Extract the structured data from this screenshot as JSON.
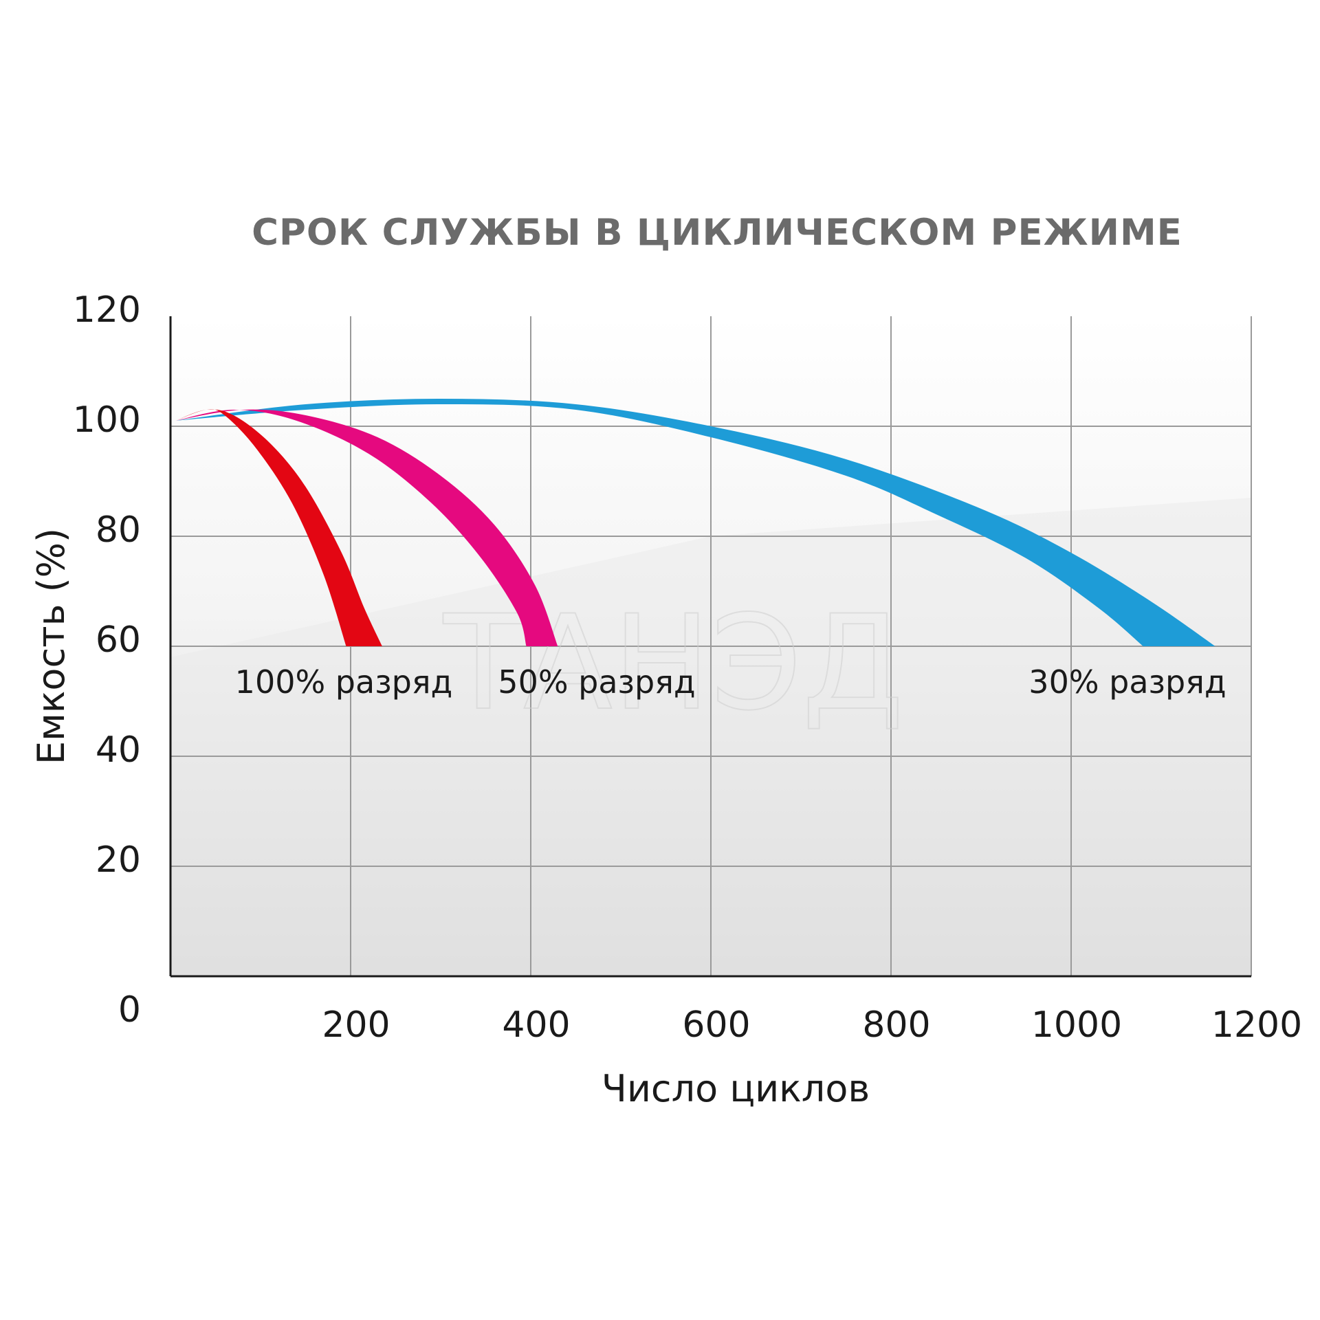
{
  "chart_data": {
    "type": "line",
    "title": "СРОК СЛУЖБЫ В ЦИКЛИЧЕСКОМ РЕЖИМЕ",
    "xlabel": "Число циклов",
    "ylabel": "Емкость (%)",
    "xlim": [
      0,
      1200
    ],
    "ylim": [
      0,
      120
    ],
    "x_ticks": [
      "200",
      "400",
      "600",
      "800",
      "1000",
      "1200"
    ],
    "y_ticks": [
      "20",
      "40",
      "60",
      "80",
      "100",
      "120"
    ],
    "origin_label": "0",
    "grid": true,
    "watermark": "ТАНЭД",
    "series": [
      {
        "name": "100% разряд",
        "color": "#e30613",
        "upper": [
          [
            5,
            101
          ],
          [
            40,
            103
          ],
          [
            70,
            102
          ],
          [
            110,
            97
          ],
          [
            150,
            89
          ],
          [
            190,
            77
          ],
          [
            215,
            67
          ],
          [
            235,
            60
          ]
        ],
        "lower": [
          [
            5,
            101
          ],
          [
            40,
            103
          ],
          [
            60,
            102
          ],
          [
            95,
            96
          ],
          [
            135,
            86
          ],
          [
            170,
            73
          ],
          [
            195,
            60
          ]
        ]
      },
      {
        "name": "50% разряд",
        "color": "#e5097f",
        "upper": [
          [
            5,
            101
          ],
          [
            80,
            103
          ],
          [
            150,
            102
          ],
          [
            230,
            98
          ],
          [
            300,
            91
          ],
          [
            360,
            82
          ],
          [
            405,
            71
          ],
          [
            430,
            60
          ]
        ],
        "lower": [
          [
            5,
            101
          ],
          [
            70,
            103
          ],
          [
            140,
            101
          ],
          [
            220,
            95
          ],
          [
            290,
            86
          ],
          [
            345,
            76
          ],
          [
            385,
            66
          ],
          [
            395,
            60
          ]
        ]
      },
      {
        "name": "30% разряд",
        "color": "#1e9cd7",
        "upper": [
          [
            5,
            101
          ],
          [
            150,
            104
          ],
          [
            300,
            105
          ],
          [
            450,
            104
          ],
          [
            600,
            100
          ],
          [
            750,
            94
          ],
          [
            900,
            85
          ],
          [
            1000,
            77
          ],
          [
            1090,
            68
          ],
          [
            1160,
            60
          ]
        ],
        "lower": [
          [
            5,
            101
          ],
          [
            150,
            103
          ],
          [
            300,
            104
          ],
          [
            450,
            103
          ],
          [
            600,
            98
          ],
          [
            750,
            91
          ],
          [
            850,
            84
          ],
          [
            950,
            76
          ],
          [
            1030,
            67
          ],
          [
            1080,
            60
          ]
        ]
      }
    ]
  }
}
